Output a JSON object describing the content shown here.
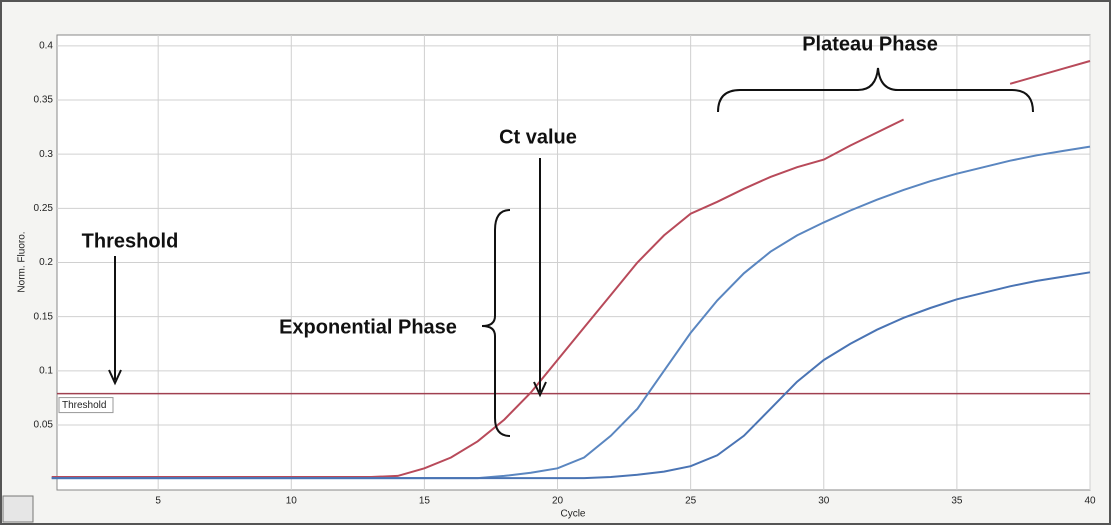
{
  "chart_data": {
    "type": "line",
    "xlabel": "Cycle",
    "ylabel": "Norm. Fluoro.",
    "x": [
      1,
      2,
      3,
      4,
      5,
      6,
      7,
      8,
      9,
      10,
      11,
      12,
      13,
      14,
      15,
      16,
      17,
      18,
      19,
      20,
      21,
      22,
      23,
      24,
      25,
      26,
      27,
      28,
      29,
      30,
      31,
      32,
      33,
      34,
      35,
      36,
      37,
      38,
      39,
      40
    ],
    "series": [
      {
        "color": "#b84a5a",
        "values": [
          0.002,
          0.002,
          0.002,
          0.002,
          0.002,
          0.002,
          0.002,
          0.002,
          0.002,
          0.002,
          0.002,
          0.002,
          0.002,
          0.003,
          0.01,
          0.02,
          0.035,
          0.055,
          0.08,
          0.11,
          0.14,
          0.17,
          0.2,
          0.225,
          0.245,
          0.256,
          0.268,
          0.279,
          0.288,
          0.295,
          0.308,
          0.32,
          0.332,
          null,
          null,
          null,
          0.365,
          0.372,
          0.379,
          0.386
        ]
      },
      {
        "color": "#5a86c0",
        "values": [
          0.001,
          0.001,
          0.001,
          0.001,
          0.001,
          0.001,
          0.001,
          0.001,
          0.001,
          0.001,
          0.001,
          0.001,
          0.001,
          0.001,
          0.001,
          0.001,
          0.001,
          0.003,
          0.006,
          0.01,
          0.02,
          0.04,
          0.065,
          0.1,
          0.135,
          0.165,
          0.19,
          0.21,
          0.225,
          0.237,
          0.248,
          0.258,
          0.267,
          0.275,
          0.282,
          0.288,
          0.294,
          0.299,
          0.303,
          0.307
        ]
      },
      {
        "color": "#4a74b4",
        "values": [
          0.001,
          0.001,
          0.001,
          0.001,
          0.001,
          0.001,
          0.001,
          0.001,
          0.001,
          0.001,
          0.001,
          0.001,
          0.001,
          0.001,
          0.001,
          0.001,
          0.001,
          0.001,
          0.001,
          0.001,
          0.001,
          0.002,
          0.004,
          0.007,
          0.012,
          0.022,
          0.04,
          0.065,
          0.09,
          0.11,
          0.125,
          0.138,
          0.149,
          0.158,
          0.166,
          0.172,
          0.178,
          0.183,
          0.187,
          0.191
        ]
      }
    ],
    "threshold": {
      "value": 0.079,
      "label": "Threshold",
      "color": "#a04050"
    },
    "annotations": [
      "Plateau Phase",
      "Ct value",
      "Threshold",
      "Exponential Phase"
    ],
    "xlim": [
      1.2,
      40
    ],
    "xticks": [
      5,
      10,
      15,
      20,
      25,
      30,
      35,
      40
    ],
    "ylim": [
      -0.01,
      0.41
    ],
    "yticks": [
      0.05,
      0.1,
      0.15,
      0.2,
      0.25,
      0.3,
      0.35,
      0.4
    ],
    "grid": true
  }
}
